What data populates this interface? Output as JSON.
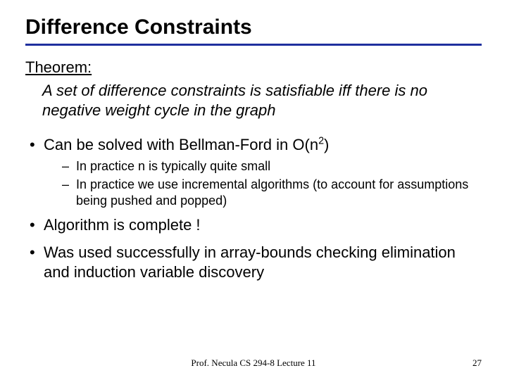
{
  "colors": {
    "rule": "#1f2f9e",
    "text": "#000000",
    "background": "#ffffff"
  },
  "title": "Difference Constraints",
  "theorem": {
    "label": "Theorem:",
    "body": "A set of difference constraints is satisfiable iff there is no negative weight cycle in the graph"
  },
  "bullets": [
    {
      "text_pre": "Can be solved with Bellman-Ford in O(n",
      "sup": "2",
      "text_post": ")",
      "sub": [
        "In practice n is typically quite small",
        "In practice we use incremental algorithms (to account for assumptions being pushed and popped)"
      ]
    },
    {
      "text": "Algorithm is complete !"
    },
    {
      "text": "Was used successfully in array-bounds checking elimination and induction variable discovery"
    }
  ],
  "footer": {
    "center": "Prof. Necula  CS 294-8  Lecture 11",
    "page": "27"
  }
}
